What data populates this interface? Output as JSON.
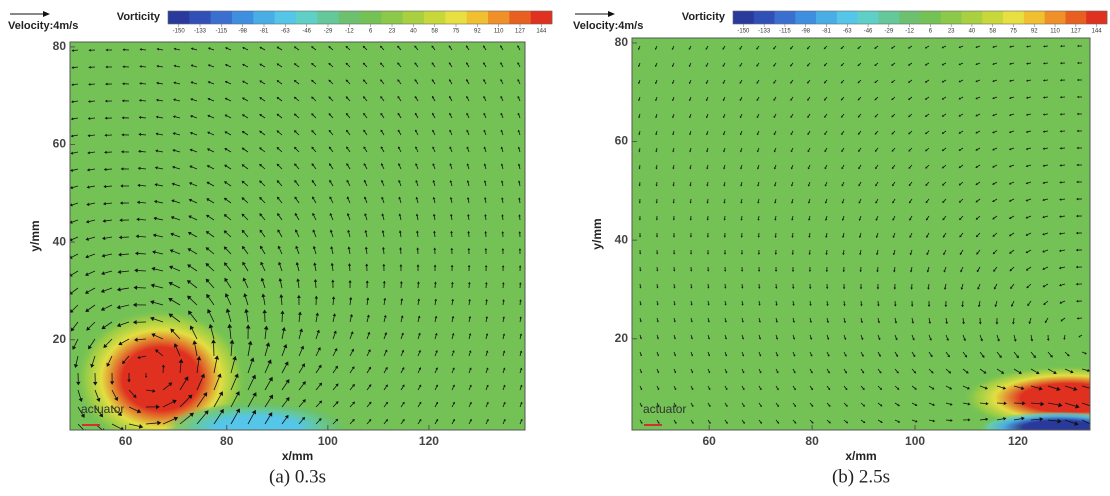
{
  "chart_data": [
    {
      "type": "vector-field",
      "caption": "(a) 0.3s",
      "velocity_label": "Velocity:4m/s",
      "colorbar_title": "Vorticity",
      "colorbar_ticks": [
        -150,
        -133,
        -115,
        -98,
        -81,
        -63,
        -46,
        -29,
        -12,
        6,
        23,
        40,
        58,
        75,
        92,
        110,
        127,
        144
      ],
      "colorbar_colors": [
        "#2a3a9c",
        "#3050b8",
        "#3a6fd0",
        "#3f8fe0",
        "#4aaee6",
        "#55c6e8",
        "#5fd0c8",
        "#64c89a",
        "#6cc070",
        "#74c255",
        "#8cc84a",
        "#a8d040",
        "#c8d83a",
        "#e8e040",
        "#f0c030",
        "#f09028",
        "#e86020",
        "#e03020"
      ],
      "xlabel": "x/mm",
      "ylabel": "y/mm",
      "annotation": "actuator",
      "xlim": [
        49,
        139
      ],
      "ylim": [
        1.5,
        81
      ],
      "xticks": [
        60,
        80,
        100,
        120
      ],
      "yticks": [
        20,
        40,
        60,
        80
      ],
      "vortices": [
        {
          "x": 67,
          "y": 12,
          "rx": 13,
          "ry": 11,
          "vorticity": 144
        },
        {
          "x": 86,
          "y": 2,
          "rx": 14,
          "ry": 4,
          "vorticity": -60
        }
      ]
    },
    {
      "type": "vector-field",
      "caption": "(b) 2.5s",
      "velocity_label": "Velocity:4m/s",
      "colorbar_title": "Vorticity",
      "colorbar_ticks": [
        -150,
        -133,
        -115,
        -98,
        -81,
        -63,
        -46,
        -29,
        -12,
        6,
        23,
        40,
        58,
        75,
        92,
        110,
        127,
        144
      ],
      "colorbar_colors": [
        "#2a3a9c",
        "#3050b8",
        "#3a6fd0",
        "#3f8fe0",
        "#4aaee6",
        "#55c6e8",
        "#5fd0c8",
        "#64c89a",
        "#6cc070",
        "#74c255",
        "#8cc84a",
        "#a8d040",
        "#c8d83a",
        "#e8e040",
        "#f0c030",
        "#f09028",
        "#e86020",
        "#e03020"
      ],
      "xlabel": "x/mm",
      "ylabel": "y/mm",
      "annotation": "actuator",
      "xlim": [
        45,
        134
      ],
      "ylim": [
        1.5,
        81
      ],
      "xticks": [
        60,
        80,
        100,
        120
      ],
      "yticks": [
        20,
        40,
        60,
        80
      ],
      "vortices": [
        {
          "x": 130,
          "y": 8,
          "rx": 16,
          "ry": 5,
          "vorticity": 144
        },
        {
          "x": 128,
          "y": 2,
          "rx": 12,
          "ry": 2.5,
          "vorticity": -150
        }
      ]
    }
  ]
}
